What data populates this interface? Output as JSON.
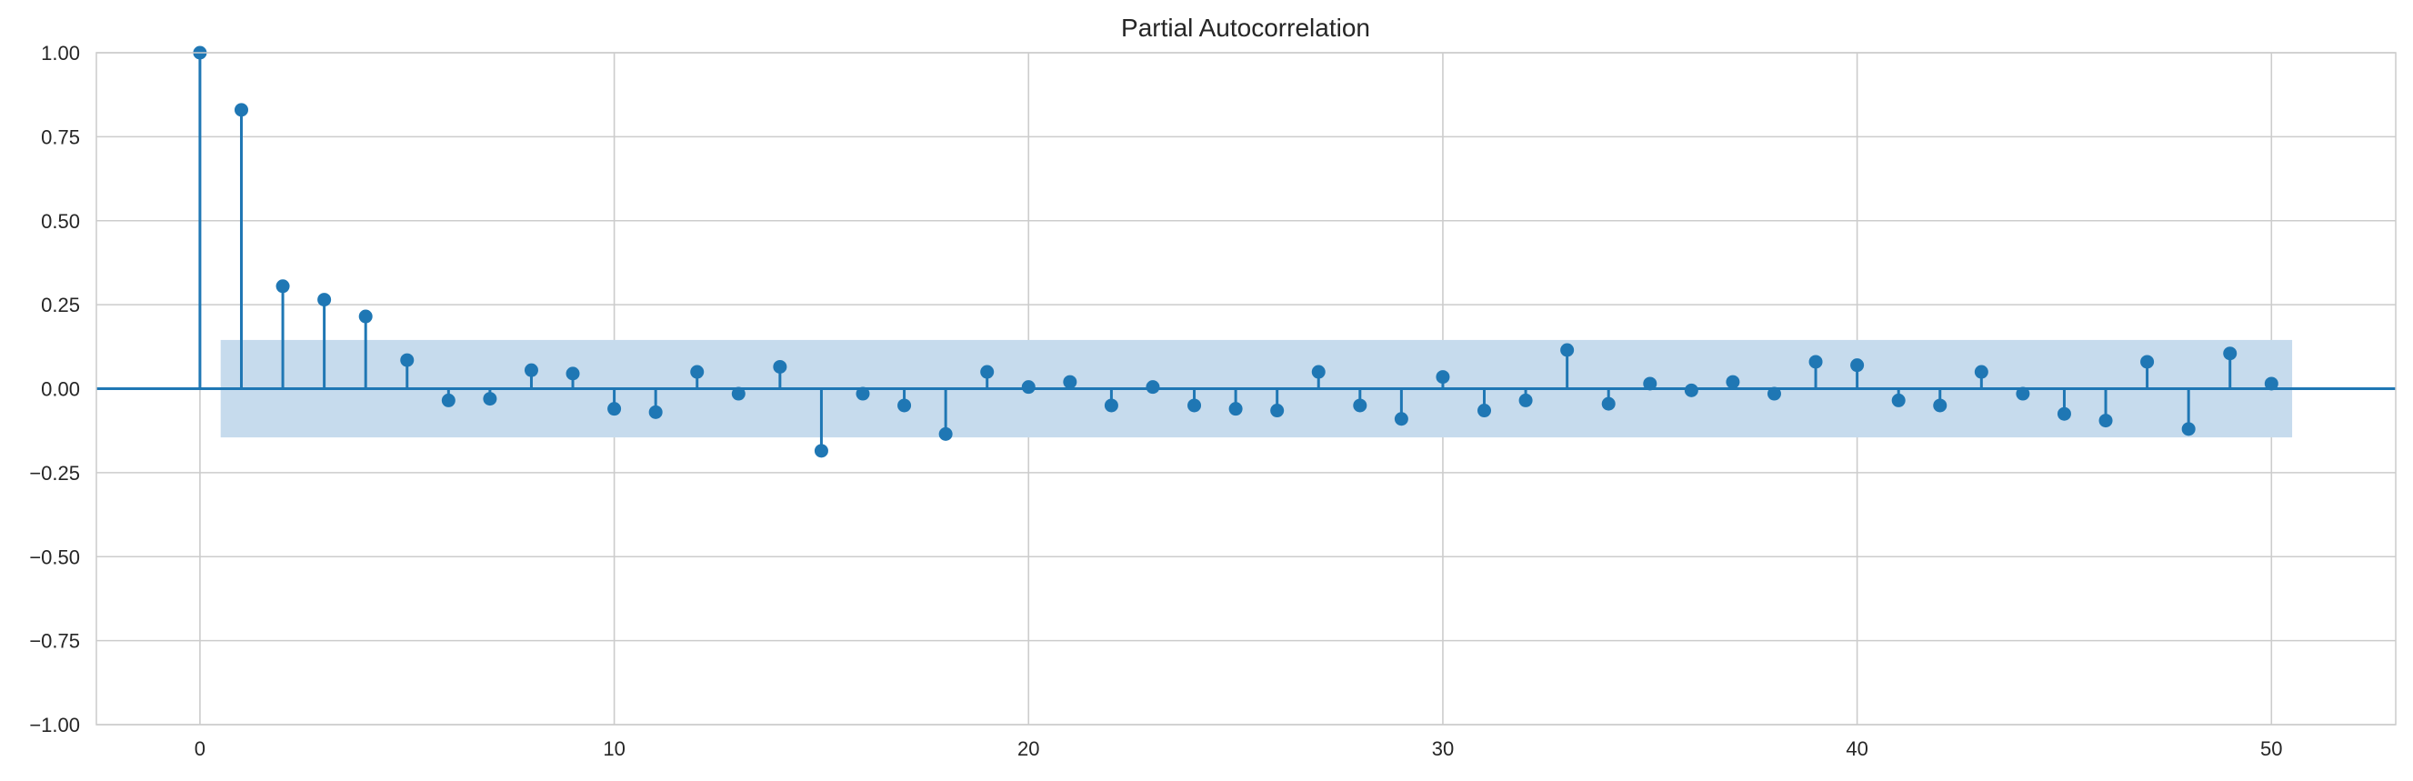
{
  "chart_data": {
    "type": "scatter",
    "subtype": "stem",
    "title": "Partial Autocorrelation",
    "xlabel": "",
    "ylabel": "",
    "xlim": [
      -2.5,
      53
    ],
    "ylim": [
      -1.0,
      1.0
    ],
    "xticks": [
      0,
      10,
      20,
      30,
      40,
      50
    ],
    "xtick_labels": [
      "0",
      "10",
      "20",
      "30",
      "40",
      "50"
    ],
    "yticks": [
      1.0,
      0.75,
      0.5,
      0.25,
      0.0,
      -0.25,
      -0.5,
      -0.75,
      -1.0
    ],
    "ytick_labels": [
      "1.00",
      "0.75",
      "0.50",
      "0.25",
      "0.00",
      "−0.25",
      "−0.50",
      "−0.75",
      "−1.00"
    ],
    "grid": true,
    "legend": "none",
    "colors": {
      "stem": "#1f77b4",
      "band": "#c6dbed",
      "grid": "#cccccc",
      "spine": "#cccccc",
      "text": "#262626"
    },
    "confidence_band": {
      "x_start": 0.5,
      "x_end": 50.5,
      "lower": -0.145,
      "upper": 0.145
    },
    "lags": [
      0,
      1,
      2,
      3,
      4,
      5,
      6,
      7,
      8,
      9,
      10,
      11,
      12,
      13,
      14,
      15,
      16,
      17,
      18,
      19,
      20,
      21,
      22,
      23,
      24,
      25,
      26,
      27,
      28,
      29,
      30,
      31,
      32,
      33,
      34,
      35,
      36,
      37,
      38,
      39,
      40,
      41,
      42,
      43,
      44,
      45,
      46,
      47,
      48,
      49,
      50
    ],
    "values": [
      1.0,
      0.83,
      0.305,
      0.265,
      0.215,
      0.085,
      -0.035,
      -0.03,
      0.055,
      0.045,
      -0.06,
      -0.07,
      0.05,
      -0.015,
      0.065,
      -0.185,
      -0.015,
      -0.05,
      -0.135,
      0.05,
      0.005,
      0.02,
      -0.05,
      0.005,
      -0.05,
      -0.06,
      -0.065,
      0.05,
      -0.05,
      -0.09,
      0.035,
      -0.065,
      -0.035,
      0.115,
      -0.045,
      0.015,
      -0.005,
      0.02,
      -0.015,
      0.08,
      0.07,
      -0.035,
      -0.05,
      0.05,
      -0.015,
      -0.075,
      -0.095,
      0.08,
      -0.12,
      0.105,
      0.015
    ]
  }
}
